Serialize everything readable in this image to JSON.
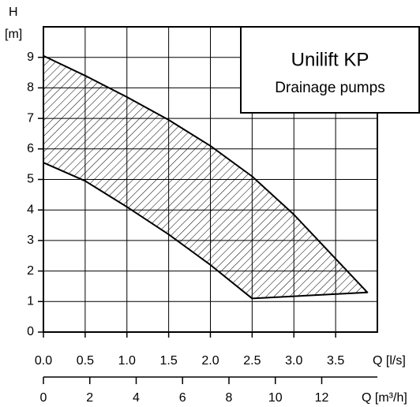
{
  "chart_data": {
    "type": "area",
    "title": "Unilift KP",
    "subtitle": "Drainage pumps",
    "ylabel_top": "H",
    "ylabel_unit": "[m]",
    "xlabel": "Q [l/s]",
    "x2label": "Q [m³/h]",
    "area": {
      "x": [
        0,
        0.5,
        1,
        1.5,
        2,
        2.5,
        3,
        3.5,
        3.88,
        2.5,
        2,
        1.5,
        1,
        0.5,
        0
      ],
      "y": [
        9.05,
        8.4,
        7.7,
        6.95,
        6.1,
        5.1,
        3.85,
        2.4,
        1.3,
        1.1,
        2.2,
        3.2,
        4.1,
        4.95,
        5.55
      ]
    },
    "xlim": [
      0,
      4
    ],
    "xticks": [
      {
        "value": 0,
        "label": "0.0"
      },
      0.5,
      {
        "value": 1,
        "label": "1.0"
      },
      1.5,
      {
        "value": 2,
        "label": "2.0"
      },
      2.5,
      {
        "value": 3,
        "label": "3.0"
      },
      3.5
    ],
    "x2lim": [
      0,
      14.4
    ],
    "x2ticks": [
      0,
      2,
      4,
      6,
      8,
      10,
      12
    ],
    "ylim": [
      0,
      10
    ],
    "yticks": [
      0,
      1,
      2,
      3,
      4,
      5,
      6,
      7,
      8,
      9
    ],
    "grid": true,
    "color": "#000000"
  }
}
